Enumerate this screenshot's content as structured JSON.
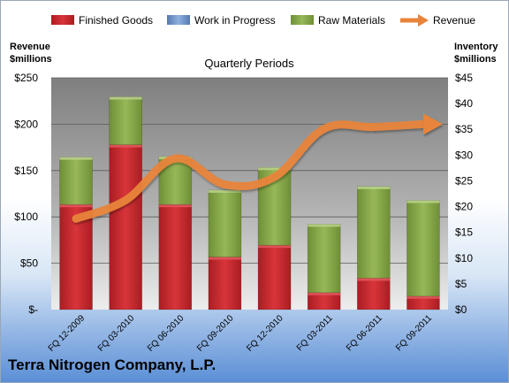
{
  "company": "Terra Nitrogen Company, L.P.",
  "colors": {
    "finished_goods": "#c0262a",
    "work_in_progress": "#6f94cc",
    "raw_materials": "#86a84a",
    "revenue": "#e8843a"
  },
  "chart_data": {
    "type": "bar",
    "stacked": true,
    "title": "Quarterly Periods",
    "left_axis_label": [
      "Revenue",
      "$millions"
    ],
    "right_axis_label": [
      "Inventory",
      "$millions"
    ],
    "left_axis": {
      "range": [
        0,
        250
      ],
      "ticks": [
        "$-",
        "$50",
        "$100",
        "$150",
        "$200",
        "$250"
      ],
      "values": [
        0,
        50,
        100,
        150,
        200,
        250
      ]
    },
    "right_axis": {
      "range": [
        0,
        45
      ],
      "ticks": [
        "$0",
        "$5",
        "$10",
        "$15",
        "$20",
        "$25",
        "$30",
        "$35",
        "$40",
        "$45"
      ],
      "values": [
        0,
        5,
        10,
        15,
        20,
        25,
        30,
        35,
        40,
        45
      ]
    },
    "grid": true,
    "legend_position": "top",
    "categories": [
      "FQ 12-2009",
      "FQ 03-2010",
      "FQ 06-2010",
      "FQ 09-2010",
      "FQ 12-2010",
      "FQ 03-2011",
      "FQ 06-2011",
      "FQ 09-2011"
    ],
    "series": [
      {
        "name": "Finished Goods",
        "axis": "right",
        "type": "bar",
        "values": [
          20.4,
          32.0,
          20.4,
          10.2,
          12.5,
          3.3,
          6.1,
          2.6
        ]
      },
      {
        "name": "Work in Progress",
        "axis": "right",
        "type": "bar",
        "values": [
          0,
          0,
          0,
          0,
          0,
          0,
          0,
          0
        ]
      },
      {
        "name": "Raw Materials",
        "axis": "right",
        "type": "bar",
        "values": [
          9.2,
          9.3,
          9.3,
          13.0,
          15.1,
          13.3,
          17.8,
          18.6
        ]
      },
      {
        "name": "Revenue",
        "axis": "left",
        "type": "line",
        "values": [
          98,
          118,
          163,
          135,
          143,
          195,
          197,
          200
        ]
      }
    ]
  }
}
